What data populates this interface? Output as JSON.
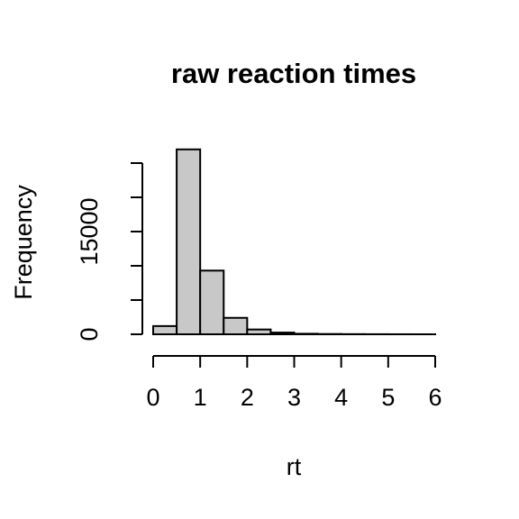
{
  "chart_data": {
    "type": "bar",
    "title": "raw reaction times",
    "xlabel": "rt",
    "ylabel": "Frequency",
    "x_ticks": [
      0,
      1,
      2,
      3,
      4,
      5,
      6
    ],
    "y_ticks": [
      0,
      5000,
      10000,
      15000,
      20000,
      25000
    ],
    "y_tick_labels": [
      "0",
      "",
      "",
      "15000",
      "",
      ""
    ],
    "xlim": [
      0,
      6
    ],
    "ylim": [
      0,
      25000
    ],
    "bin_edges": [
      0,
      0.5,
      1,
      1.5,
      2,
      2.5,
      3,
      3.5,
      4,
      4.5,
      5,
      5.5,
      6
    ],
    "values": [
      1200,
      27000,
      9300,
      2400,
      700,
      250,
      80,
      40,
      20,
      10,
      5,
      2
    ],
    "bar_fill": "#c8c8c8",
    "bar_stroke": "#000000",
    "grid": false,
    "legend": "none"
  }
}
